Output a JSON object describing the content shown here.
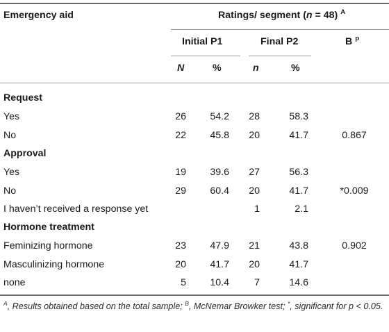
{
  "header": {
    "col1": "Emergency aid",
    "ratings": "Ratings/ segment (",
    "n_italic": "n",
    "ratings_tail": " = 48)",
    "ratings_sup": "A",
    "initial": "Initial P1",
    "final": "Final P2",
    "b": "B",
    "b_sup": "p",
    "n_upper": "N",
    "pct1": "%",
    "n_lower": "n",
    "pct2": "%"
  },
  "sections": [
    {
      "title": "Request",
      "rows": [
        {
          "label": "Yes",
          "n1": "26",
          "p1": "54.2",
          "n2": "28",
          "p2": "58.3",
          "b": ""
        },
        {
          "label": "No",
          "n1": "22",
          "p1": "45.8",
          "n2": "20",
          "p2": "41.7",
          "b": "0.867"
        }
      ]
    },
    {
      "title": "Approval",
      "rows": [
        {
          "label": "Yes",
          "n1": "19",
          "p1": "39.6",
          "n2": "27",
          "p2": "56.3",
          "b": ""
        },
        {
          "label": "No",
          "n1": "29",
          "p1": "60.4",
          "n2": "20",
          "p2": "41.7",
          "b": "*0.009"
        },
        {
          "label": "I haven’t received a response yet",
          "n1": "",
          "p1": "",
          "n2": "1",
          "p2": "2.1",
          "b": ""
        }
      ]
    },
    {
      "title": "Hormone treatment",
      "rows": [
        {
          "label": "Feminizing hormone",
          "n1": "23",
          "p1": "47.9",
          "n2": "21",
          "p2": "43.8",
          "b": "0.902"
        },
        {
          "label": "Masculinizing hormone",
          "n1": "20",
          "p1": "41.7",
          "n2": "20",
          "p2": "41.7",
          "b": ""
        },
        {
          "label": "none",
          "n1": "5",
          "p1": "10.4",
          "n2": "7",
          "p2": "14.6",
          "b": ""
        }
      ]
    }
  ],
  "footnote": {
    "a_sup": "A",
    "a_text": ", Results obtained based on the total sample; ",
    "b_sup": "B",
    "b_text": ", McNemar Browker test; ",
    "star_sup": "*",
    "star_text": ", significant for p < 0.05."
  }
}
